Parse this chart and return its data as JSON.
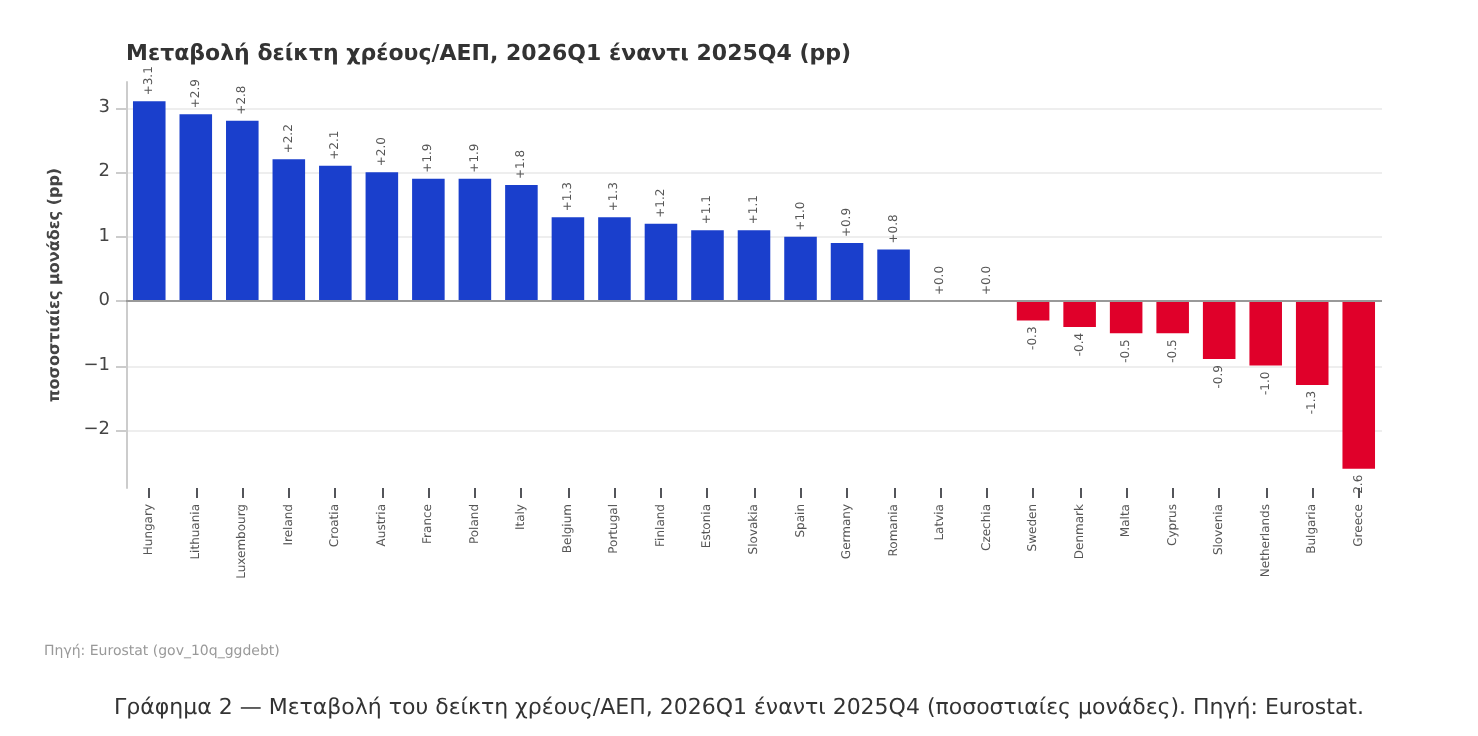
{
  "chart_data": {
    "type": "bar",
    "title": "Μεταβολή δείκτη χρέους/ΑΕΠ, 2026Q1 έναντι 2025Q4 (pp)",
    "ylabel": "ποσοστιαίες μονάδες (pp)",
    "categories": [
      "Hungary",
      "Lithuania",
      "Luxembourg",
      "Ireland",
      "Croatia",
      "Austria",
      "France",
      "Poland",
      "Italy",
      "Belgium",
      "Portugal",
      "Finland",
      "Estonia",
      "Slovakia",
      "Spain",
      "Germany",
      "Romania",
      "Latvia",
      "Czechia",
      "Sweden",
      "Denmark",
      "Malta",
      "Cyprus",
      "Slovenia",
      "Netherlands",
      "Bulgaria",
      "Greece"
    ],
    "values": [
      3.1,
      2.9,
      2.8,
      2.2,
      2.1,
      2.0,
      1.9,
      1.9,
      1.8,
      1.3,
      1.3,
      1.2,
      1.1,
      1.1,
      1.0,
      0.9,
      0.8,
      0.0,
      0.0,
      -0.3,
      -0.4,
      -0.5,
      -0.5,
      -0.9,
      -1.0,
      -1.3,
      -2.6
    ],
    "value_labels": [
      "+3.1",
      "+2.9",
      "+2.8",
      "+2.2",
      "+2.1",
      "+2.0",
      "+1.9",
      "+1.9",
      "+1.8",
      "+1.3",
      "+1.3",
      "+1.2",
      "+1.1",
      "+1.1",
      "+1.0",
      "+0.9",
      "+0.8",
      "+0.0",
      "+0.0",
      "-0.3",
      "-0.4",
      "-0.5",
      "-0.5",
      "-0.9",
      "-1.0",
      "-1.3",
      "-2.6"
    ],
    "colors": [
      "#1a3fcc",
      "#1a3fcc",
      "#1a3fcc",
      "#1a3fcc",
      "#1a3fcc",
      "#1a3fcc",
      "#1a3fcc",
      "#1a3fcc",
      "#1a3fcc",
      "#1a3fcc",
      "#1a3fcc",
      "#1a3fcc",
      "#1a3fcc",
      "#1a3fcc",
      "#1a3fcc",
      "#1a3fcc",
      "#1a3fcc",
      "#1a3fcc",
      "#1a3fcc",
      "#e0002a",
      "#e0002a",
      "#e0002a",
      "#e0002a",
      "#e0002a",
      "#e0002a",
      "#e0002a",
      "#e0002a"
    ],
    "ylim": [
      -2.9,
      3.4
    ],
    "yticks": [
      -2,
      -1,
      0,
      1,
      2,
      3
    ],
    "grid": "y",
    "annotations": [
      "Πηγή: Eurostat (gov_10q_ggdebt)",
      "Γράφημα 2 — Μεταβολή του δείκτη χρέους/ΑΕΠ, 2026Q1 έναντι 2025Q4 (ποσοστιαίες μονάδες). Πηγή: Eurostat."
    ]
  }
}
